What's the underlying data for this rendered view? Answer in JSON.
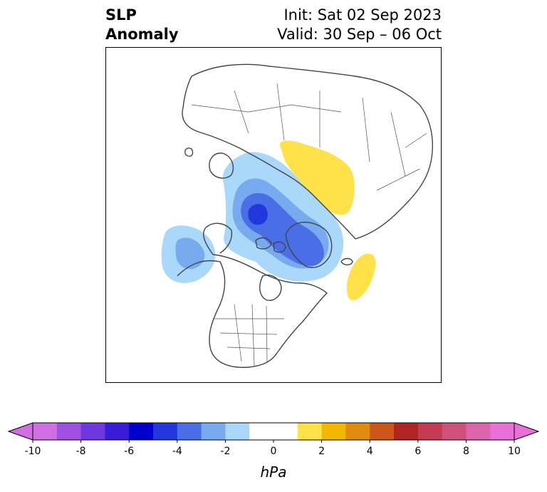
{
  "title": {
    "left_line1": "SLP",
    "left_line2": "Anomaly",
    "init": "Init: Sat 02 Sep 2023",
    "valid": "Valid: 30 Sep – 06 Oct"
  },
  "colorbar": {
    "unit": "hPa",
    "tick_labels": [
      "-10",
      "-8",
      "-6",
      "-4",
      "-2",
      "0",
      "2",
      "4",
      "6",
      "8",
      "10"
    ],
    "bins": [
      {
        "from": -10,
        "to": -9,
        "color": "#d070e0"
      },
      {
        "from": -9,
        "to": -8,
        "color": "#a050e0"
      },
      {
        "from": -8,
        "to": -7,
        "color": "#6e38de"
      },
      {
        "from": -7,
        "to": -6,
        "color": "#3a1cd8"
      },
      {
        "from": -6,
        "to": -5,
        "color": "#0000cd"
      },
      {
        "from": -5,
        "to": -4,
        "color": "#2238dc"
      },
      {
        "from": -4,
        "to": -3,
        "color": "#4a6ee6"
      },
      {
        "from": -3,
        "to": -2,
        "color": "#78aaf0"
      },
      {
        "from": -2,
        "to": -1,
        "color": "#aad8fa"
      },
      {
        "from": -1,
        "to": 1,
        "color": "#ffffff"
      },
      {
        "from": 1,
        "to": 2,
        "color": "#ffe24a"
      },
      {
        "from": 2,
        "to": 3,
        "color": "#f2b700"
      },
      {
        "from": 3,
        "to": 4,
        "color": "#e08c10"
      },
      {
        "from": 4,
        "to": 5,
        "color": "#cc561a"
      },
      {
        "from": 5,
        "to": 6,
        "color": "#b02424"
      },
      {
        "from": 6,
        "to": 7,
        "color": "#c43a50"
      },
      {
        "from": 7,
        "to": 8,
        "color": "#d0507c"
      },
      {
        "from": 8,
        "to": 9,
        "color": "#dc64aa"
      },
      {
        "from": 9,
        "to": 10,
        "color": "#e870d8"
      }
    ],
    "under_color": "#d070e0",
    "over_color": "#e870d8"
  }
}
